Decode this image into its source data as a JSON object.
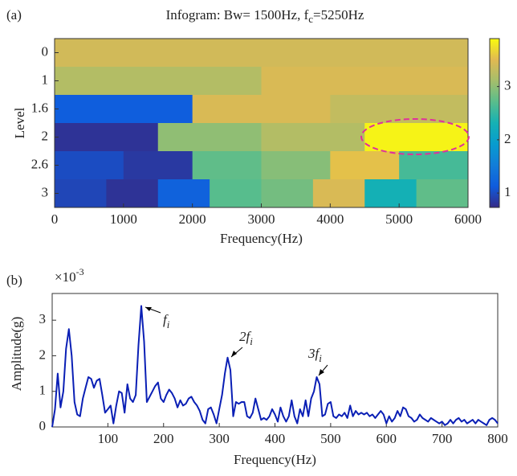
{
  "chart_data": [
    {
      "type": "heatmap",
      "panel_label": "(a)",
      "title": "Infogram: Bw= 1500Hz, f",
      "title_sub": "c",
      "title_rest": "=5250Hz",
      "xlabel": "Frequency(Hz)",
      "ylabel": "Level",
      "rows": [
        "0",
        "1",
        "1.6",
        "2",
        "2.6",
        "3"
      ],
      "values": [
        [
          3.4
        ],
        [
          3.2,
          3.45
        ],
        [
          1.15,
          3.45,
          3.3
        ],
        [
          0.8,
          3.0,
          3.2,
          3.85
        ],
        [
          1.0,
          0.85,
          2.75,
          2.95,
          3.55,
          2.6
        ],
        [
          0.95,
          0.8,
          1.2,
          2.7,
          2.85,
          3.45,
          2.3,
          2.75
        ]
      ],
      "xlim": [
        0,
        6000
      ],
      "xticks": [
        0,
        1000,
        2000,
        3000,
        4000,
        5000,
        6000
      ],
      "colormap": "parula",
      "clim": [
        0.73,
        3.9
      ],
      "cticks": [
        1,
        2,
        3
      ]
    },
    {
      "type": "line",
      "panel_label": "(b)",
      "xlabel": "Frequency(Hz)",
      "ylabel": "Amplitude(g)",
      "y_exponent_base": "×10",
      "y_exponent": "-3",
      "color": "#0a1fb5",
      "xlim": [
        0,
        800
      ],
      "xticks": [
        100,
        200,
        300,
        400,
        500,
        600,
        700,
        800
      ],
      "ylim": [
        0,
        3.75
      ],
      "yticks": [
        0,
        1,
        2,
        3
      ],
      "annotations": [
        {
          "text": "f",
          "sub": "i"
        },
        {
          "text": "2f",
          "sub": "i"
        },
        {
          "text": "3f",
          "sub": "i"
        }
      ],
      "x": [
        0,
        5,
        10,
        15,
        20,
        25,
        30,
        35,
        40,
        45,
        50,
        55,
        60,
        65,
        70,
        75,
        80,
        85,
        90,
        95,
        100,
        105,
        110,
        115,
        120,
        125,
        130,
        135,
        140,
        145,
        150,
        155,
        160,
        165,
        170,
        175,
        180,
        185,
        190,
        195,
        200,
        205,
        210,
        215,
        220,
        225,
        230,
        235,
        240,
        245,
        250,
        255,
        260,
        265,
        270,
        275,
        280,
        285,
        290,
        295,
        300,
        305,
        310,
        315,
        320,
        325,
        330,
        335,
        340,
        345,
        350,
        355,
        360,
        365,
        370,
        375,
        380,
        385,
        390,
        395,
        400,
        405,
        410,
        415,
        420,
        425,
        430,
        435,
        440,
        445,
        450,
        455,
        460,
        465,
        470,
        475,
        480,
        485,
        490,
        495,
        500,
        505,
        510,
        515,
        520,
        525,
        530,
        535,
        540,
        545,
        550,
        555,
        560,
        565,
        570,
        575,
        580,
        585,
        590,
        595,
        600,
        605,
        610,
        615,
        620,
        625,
        630,
        635,
        640,
        645,
        650,
        655,
        660,
        665,
        670,
        675,
        680,
        685,
        690,
        695,
        700,
        705,
        710,
        715,
        720,
        725,
        730,
        735,
        740,
        745,
        750,
        755,
        760,
        765,
        770,
        775,
        780,
        785,
        790,
        795,
        800
      ],
      "values": [
        0,
        0.5,
        1.5,
        0.55,
        1.0,
        2.2,
        2.75,
        2.0,
        0.7,
        0.35,
        0.3,
        0.8,
        1.1,
        1.4,
        1.35,
        1.1,
        1.3,
        1.35,
        0.9,
        0.4,
        0.5,
        0.6,
        0.1,
        0.6,
        1.0,
        0.95,
        0.4,
        1.2,
        0.8,
        0.7,
        0.9,
        2.3,
        3.4,
        2.4,
        0.7,
        0.85,
        1.0,
        1.15,
        1.25,
        0.8,
        0.7,
        0.9,
        1.05,
        0.95,
        0.8,
        0.55,
        0.75,
        0.6,
        0.65,
        0.8,
        0.85,
        0.7,
        0.6,
        0.45,
        0.2,
        0.1,
        0.5,
        0.55,
        0.35,
        0.1,
        0.5,
        0.9,
        1.5,
        1.95,
        1.6,
        0.3,
        0.7,
        0.65,
        0.7,
        0.7,
        0.3,
        0.25,
        0.4,
        0.8,
        0.5,
        0.2,
        0.25,
        0.2,
        0.3,
        0.5,
        0.35,
        0.15,
        0.55,
        0.3,
        0.15,
        0.3,
        0.75,
        0.3,
        0.1,
        0.5,
        0.3,
        0.75,
        0.3,
        0.8,
        1.0,
        1.4,
        1.2,
        0.3,
        0.35,
        0.65,
        0.7,
        0.3,
        0.25,
        0.35,
        0.3,
        0.4,
        0.25,
        0.6,
        0.3,
        0.45,
        0.35,
        0.4,
        0.35,
        0.4,
        0.3,
        0.35,
        0.25,
        0.35,
        0.45,
        0.35,
        0.1,
        0.3,
        0.15,
        0.25,
        0.45,
        0.3,
        0.55,
        0.5,
        0.3,
        0.25,
        0.15,
        0.2,
        0.35,
        0.25,
        0.2,
        0.15,
        0.25,
        0.2,
        0.15,
        0.1,
        0.15,
        0.05,
        0.1,
        0.2,
        0.1,
        0.2,
        0.25,
        0.15,
        0.2,
        0.1,
        0.15,
        0.2,
        0.1,
        0.2,
        0.15,
        0.1,
        0.05,
        0.2,
        0.25,
        0.2,
        0.1
      ]
    }
  ]
}
